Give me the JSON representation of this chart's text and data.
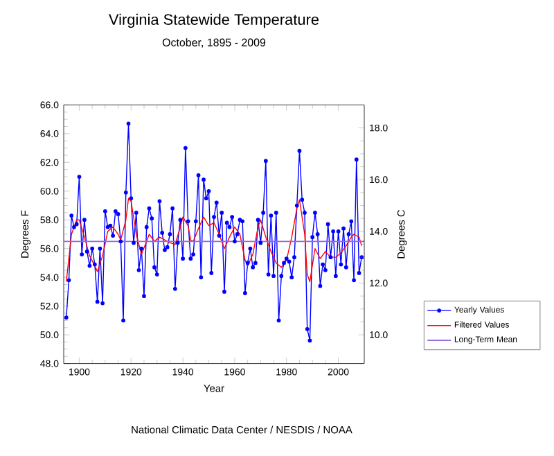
{
  "chart_data": {
    "type": "line",
    "title": "Virginia Statewide Temperature",
    "subtitle": "October, 1895 - 2009",
    "xlabel": "Year",
    "ylabel": "Degrees F",
    "y2label": "Degrees C",
    "annotations": [
      "National Climatic Data Center / NESDIS / NOAA"
    ],
    "x": [
      1895,
      1896,
      1897,
      1898,
      1899,
      1900,
      1901,
      1902,
      1903,
      1904,
      1905,
      1906,
      1907,
      1908,
      1909,
      1910,
      1911,
      1912,
      1913,
      1914,
      1915,
      1916,
      1917,
      1918,
      1919,
      1920,
      1921,
      1922,
      1923,
      1924,
      1925,
      1926,
      1927,
      1928,
      1929,
      1930,
      1931,
      1932,
      1933,
      1934,
      1935,
      1936,
      1937,
      1938,
      1939,
      1940,
      1941,
      1942,
      1943,
      1944,
      1945,
      1946,
      1947,
      1948,
      1949,
      1950,
      1951,
      1952,
      1953,
      1954,
      1955,
      1956,
      1957,
      1958,
      1959,
      1960,
      1961,
      1962,
      1963,
      1964,
      1965,
      1966,
      1967,
      1968,
      1969,
      1970,
      1971,
      1972,
      1973,
      1974,
      1975,
      1976,
      1977,
      1978,
      1979,
      1980,
      1981,
      1982,
      1983,
      1984,
      1985,
      1986,
      1987,
      1988,
      1989,
      1990,
      1991,
      1992,
      1993,
      1994,
      1995,
      1996,
      1997,
      1998,
      1999,
      2000,
      2001,
      2002,
      2003,
      2004,
      2005,
      2006,
      2007,
      2008,
      2009
    ],
    "series": [
      {
        "name": "Yearly Values",
        "color": "#0000ff",
        "marker": "circle",
        "values": [
          51.2,
          53.8,
          58.3,
          57.5,
          57.7,
          61.0,
          55.6,
          58.0,
          55.8,
          54.8,
          56.0,
          54.9,
          52.3,
          56.0,
          52.2,
          58.6,
          57.5,
          57.6,
          56.9,
          58.6,
          58.4,
          56.5,
          51.0,
          59.9,
          64.7,
          59.5,
          56.4,
          58.5,
          54.5,
          56.0,
          52.7,
          57.5,
          58.8,
          58.1,
          54.7,
          54.2,
          59.3,
          57.1,
          55.9,
          56.1,
          57.0,
          58.8,
          53.2,
          56.4,
          58.0,
          55.3,
          63.0,
          57.9,
          55.3,
          55.6,
          57.9,
          61.1,
          54.0,
          60.8,
          59.5,
          60.0,
          54.3,
          58.2,
          59.2,
          56.9,
          58.5,
          53.0,
          57.8,
          57.5,
          58.2,
          56.5,
          57.0,
          58.0,
          57.9,
          52.9,
          55.0,
          56.0,
          54.7,
          55.0,
          58.0,
          56.4,
          58.5,
          62.1,
          54.2,
          58.3,
          54.1,
          58.5,
          51.0,
          54.1,
          55.0,
          55.3,
          55.1,
          54.0,
          55.4,
          59.0,
          62.8,
          59.4,
          58.5,
          50.4,
          49.6,
          56.8,
          58.5,
          57.0,
          53.4,
          54.9,
          54.5,
          57.7,
          55.4,
          57.2,
          54.1,
          57.2,
          54.9,
          57.4,
          54.7,
          57.0,
          57.9,
          53.8,
          62.2,
          54.3,
          55.4
        ]
      },
      {
        "name": "Filtered Values",
        "color": "#ff0000",
        "marker": "none",
        "x": [
          1895,
          1897,
          1899,
          1900,
          1902,
          1904,
          1906,
          1907,
          1909,
          1911,
          1913,
          1915,
          1916,
          1918,
          1919,
          1920,
          1922,
          1924,
          1926,
          1927,
          1929,
          1931,
          1933,
          1935,
          1937,
          1939,
          1940,
          1942,
          1943,
          1944,
          1946,
          1948,
          1950,
          1952,
          1954,
          1956,
          1958,
          1960,
          1962,
          1964,
          1965,
          1967,
          1969,
          1970,
          1972,
          1974,
          1976,
          1978,
          1980,
          1982,
          1984,
          1985,
          1987,
          1988,
          1989,
          1991,
          1993,
          1995,
          1997,
          1999,
          2001,
          2003,
          2005,
          2006,
          2008,
          2009
        ],
        "values": [
          53.7,
          57.0,
          58.0,
          58.0,
          56.8,
          55.5,
          54.8,
          54.4,
          55.5,
          57.2,
          57.5,
          57.0,
          56.6,
          58.0,
          59.5,
          59.3,
          57.0,
          55.6,
          56.5,
          57.0,
          56.5,
          56.8,
          56.6,
          56.4,
          56.3,
          57.5,
          58.2,
          57.6,
          56.6,
          56.5,
          57.4,
          58.2,
          57.6,
          57.8,
          57.0,
          56.0,
          56.8,
          57.5,
          57.0,
          55.2,
          54.8,
          55.6,
          57.5,
          58.0,
          56.8,
          55.8,
          55.0,
          54.7,
          55.2,
          56.8,
          58.8,
          59.4,
          57.0,
          54.2,
          53.7,
          56.0,
          55.3,
          55.8,
          55.4,
          55.4,
          55.7,
          56.2,
          56.8,
          57.0,
          56.8,
          56.2
        ]
      }
    ],
    "ref_lines": [
      {
        "axis": "y",
        "value": 56.5,
        "label": "Long-Term Mean",
        "color": "#9966dd"
      }
    ],
    "xlim": [
      1894,
      2010
    ],
    "xticks": [
      1900,
      1920,
      1940,
      1960,
      1980,
      2000
    ],
    "ylim": [
      48,
      66
    ],
    "yticks": [
      {
        "value": 48,
        "label": "48.0"
      },
      {
        "value": 50,
        "label": "50.0"
      },
      {
        "value": 52,
        "label": "52.0"
      },
      {
        "value": 54,
        "label": "54.0"
      },
      {
        "value": 56,
        "label": "56.0"
      },
      {
        "value": 58,
        "label": "58.0"
      },
      {
        "value": 60,
        "label": "60.0"
      },
      {
        "value": 62,
        "label": "62.0"
      },
      {
        "value": 64,
        "label": "64.0"
      },
      {
        "value": 66,
        "label": "66.0"
      }
    ],
    "y2lim": [
      8.889,
      18.889
    ],
    "y2ticks": [
      {
        "value": 10,
        "label": "10.0"
      },
      {
        "value": 12,
        "label": "12.0"
      },
      {
        "value": 14,
        "label": "14.0"
      },
      {
        "value": 16,
        "label": "16.0"
      },
      {
        "value": 18,
        "label": "18.0"
      }
    ],
    "legend": "right"
  }
}
